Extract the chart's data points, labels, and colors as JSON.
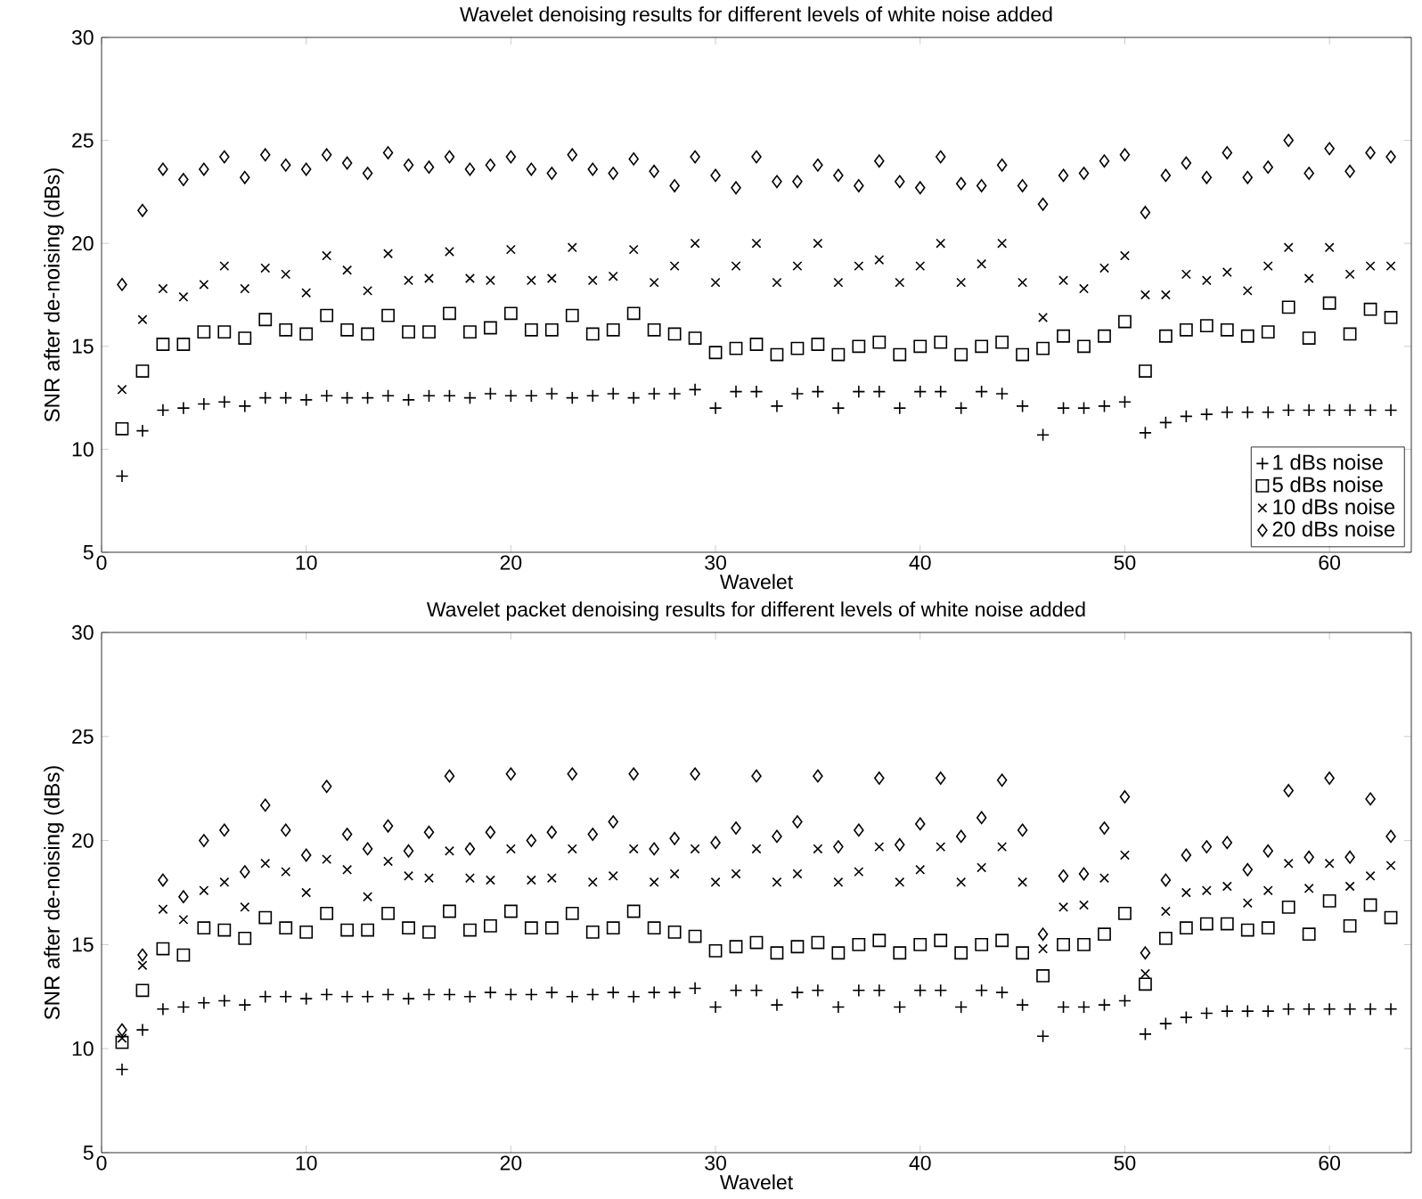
{
  "chart_data": [
    {
      "type": "scatter",
      "title": "Wavelet denoising results for different levels of white noise added",
      "xlabel": "Wavelet",
      "ylabel": "SNR after de-noising (dBs)",
      "x": [
        1,
        2,
        3,
        4,
        5,
        6,
        7,
        8,
        9,
        10,
        11,
        12,
        13,
        14,
        15,
        16,
        17,
        18,
        19,
        20,
        21,
        22,
        23,
        24,
        25,
        26,
        27,
        28,
        29,
        30,
        31,
        32,
        33,
        34,
        35,
        36,
        37,
        38,
        39,
        40,
        41,
        42,
        43,
        44,
        45,
        46,
        47,
        48,
        49,
        50,
        51,
        52,
        53,
        54,
        55,
        56,
        57,
        58,
        59,
        60,
        61,
        62,
        63
      ],
      "xlim": [
        0,
        64
      ],
      "ylim": [
        5,
        30
      ],
      "xticks": [
        0,
        10,
        20,
        30,
        40,
        50,
        60
      ],
      "yticks": [
        5,
        10,
        15,
        20,
        25,
        30
      ],
      "legend": "bottom right",
      "series": [
        {
          "name": "1 dBs noise",
          "color": "#000000",
          "marker": "plus",
          "values": [
            8.7,
            10.9,
            11.9,
            12.0,
            12.2,
            12.3,
            12.1,
            12.5,
            12.5,
            12.4,
            12.6,
            12.5,
            12.5,
            12.6,
            12.4,
            12.6,
            12.6,
            12.5,
            12.7,
            12.6,
            12.6,
            12.7,
            12.5,
            12.6,
            12.7,
            12.5,
            12.7,
            12.7,
            12.9,
            12.0,
            12.8,
            12.8,
            12.1,
            12.7,
            12.8,
            12.0,
            12.8,
            12.8,
            12.0,
            12.8,
            12.8,
            12.0,
            12.8,
            12.7,
            12.1,
            10.7,
            12.0,
            12.0,
            12.1,
            12.3,
            10.8,
            11.3,
            11.6,
            11.7,
            11.8,
            11.8,
            11.8,
            11.9,
            11.9,
            11.9,
            11.9,
            11.9,
            11.9
          ]
        },
        {
          "name": "5 dBs noise",
          "color": "#000000",
          "marker": "square",
          "values": [
            11.0,
            13.8,
            15.1,
            15.1,
            15.7,
            15.7,
            15.4,
            16.3,
            15.8,
            15.6,
            16.5,
            15.8,
            15.6,
            16.5,
            15.7,
            15.7,
            16.6,
            15.7,
            15.9,
            16.6,
            15.8,
            15.8,
            16.5,
            15.6,
            15.8,
            16.6,
            15.8,
            15.6,
            15.4,
            14.7,
            14.9,
            15.1,
            14.6,
            14.9,
            15.1,
            14.6,
            15.0,
            15.2,
            14.6,
            15.0,
            15.2,
            14.6,
            15.0,
            15.2,
            14.6,
            14.9,
            15.5,
            15.0,
            15.5,
            16.2,
            13.8,
            15.5,
            15.8,
            16.0,
            15.8,
            15.5,
            15.7,
            16.9,
            15.4,
            17.1,
            15.6,
            16.8,
            16.4
          ]
        },
        {
          "name": "10 dBs noise",
          "color": "#000000",
          "marker": "cross",
          "values": [
            12.9,
            16.3,
            17.8,
            17.4,
            18.0,
            18.9,
            17.8,
            18.8,
            18.5,
            17.6,
            19.4,
            18.7,
            17.7,
            19.5,
            18.2,
            18.3,
            19.6,
            18.3,
            18.2,
            19.7,
            18.2,
            18.3,
            19.8,
            18.2,
            18.4,
            19.7,
            18.1,
            18.9,
            20.0,
            18.1,
            18.9,
            20.0,
            18.1,
            18.9,
            20.0,
            18.1,
            18.9,
            19.2,
            18.1,
            18.9,
            20.0,
            18.1,
            19.0,
            20.0,
            18.1,
            16.4,
            18.2,
            17.8,
            18.8,
            19.4,
            17.5,
            17.5,
            18.5,
            18.2,
            18.6,
            17.7,
            18.9,
            19.8,
            18.3,
            19.8,
            18.5,
            18.9,
            18.9
          ]
        },
        {
          "name": "20 dBs noise",
          "color": "#000000",
          "marker": "diamond",
          "values": [
            18.0,
            21.6,
            23.6,
            23.1,
            23.6,
            24.2,
            23.2,
            24.3,
            23.8,
            23.6,
            24.3,
            23.9,
            23.4,
            24.4,
            23.8,
            23.7,
            24.2,
            23.6,
            23.8,
            24.2,
            23.6,
            23.4,
            24.3,
            23.6,
            23.4,
            24.1,
            23.5,
            22.8,
            24.2,
            23.3,
            22.7,
            24.2,
            23.0,
            23.0,
            23.8,
            23.3,
            22.8,
            24.0,
            23.0,
            22.7,
            24.2,
            22.9,
            22.8,
            23.8,
            22.8,
            21.9,
            23.3,
            23.4,
            24.0,
            24.3,
            21.5,
            23.3,
            23.9,
            23.2,
            24.4,
            23.2,
            23.7,
            25.0,
            23.4,
            24.6,
            23.5,
            24.4,
            24.2
          ]
        }
      ]
    },
    {
      "type": "scatter",
      "title": "Wavelet packet denoising results for different levels of white noise added",
      "xlabel": "Wavelet",
      "ylabel": "SNR after de-noising (dBs)",
      "x": [
        1,
        2,
        3,
        4,
        5,
        6,
        7,
        8,
        9,
        10,
        11,
        12,
        13,
        14,
        15,
        16,
        17,
        18,
        19,
        20,
        21,
        22,
        23,
        24,
        25,
        26,
        27,
        28,
        29,
        30,
        31,
        32,
        33,
        34,
        35,
        36,
        37,
        38,
        39,
        40,
        41,
        42,
        43,
        44,
        45,
        46,
        47,
        48,
        49,
        50,
        51,
        52,
        53,
        54,
        55,
        56,
        57,
        58,
        59,
        60,
        61,
        62,
        63
      ],
      "xlim": [
        0,
        64
      ],
      "ylim": [
        5,
        30
      ],
      "xticks": [
        0,
        10,
        20,
        30,
        40,
        50,
        60
      ],
      "yticks": [
        5,
        10,
        15,
        20,
        25,
        30
      ],
      "legend": false,
      "series": [
        {
          "color": "#000000",
          "marker": "plus",
          "values": [
            9.0,
            10.9,
            11.9,
            12.0,
            12.2,
            12.3,
            12.1,
            12.5,
            12.5,
            12.4,
            12.6,
            12.5,
            12.5,
            12.6,
            12.4,
            12.6,
            12.6,
            12.5,
            12.7,
            12.6,
            12.6,
            12.7,
            12.5,
            12.6,
            12.7,
            12.5,
            12.7,
            12.7,
            12.9,
            12.0,
            12.8,
            12.8,
            12.1,
            12.7,
            12.8,
            12.0,
            12.8,
            12.8,
            12.0,
            12.8,
            12.8,
            12.0,
            12.8,
            12.7,
            12.1,
            10.6,
            12.0,
            12.0,
            12.1,
            12.3,
            10.7,
            11.2,
            11.5,
            11.7,
            11.8,
            11.8,
            11.8,
            11.9,
            11.9,
            11.9,
            11.9,
            11.9,
            11.9
          ]
        },
        {
          "color": "#000000",
          "marker": "square",
          "values": [
            10.3,
            12.8,
            14.8,
            14.5,
            15.8,
            15.7,
            15.3,
            16.3,
            15.8,
            15.6,
            16.5,
            15.7,
            15.7,
            16.5,
            15.8,
            15.6,
            16.6,
            15.7,
            15.9,
            16.6,
            15.8,
            15.8,
            16.5,
            15.6,
            15.8,
            16.6,
            15.8,
            15.6,
            15.4,
            14.7,
            14.9,
            15.1,
            14.6,
            14.9,
            15.1,
            14.6,
            15.0,
            15.2,
            14.6,
            15.0,
            15.2,
            14.6,
            15.0,
            15.2,
            14.6,
            13.5,
            15.0,
            15.0,
            15.5,
            16.5,
            13.1,
            15.3,
            15.8,
            16.0,
            16.0,
            15.7,
            15.8,
            16.8,
            15.5,
            17.1,
            15.9,
            16.9,
            16.3
          ]
        },
        {
          "color": "#000000",
          "marker": "cross",
          "values": [
            10.5,
            14.0,
            16.7,
            16.2,
            17.6,
            18.0,
            16.8,
            18.9,
            18.5,
            17.5,
            19.1,
            18.6,
            17.3,
            19.0,
            18.3,
            18.2,
            19.5,
            18.2,
            18.1,
            19.6,
            18.1,
            18.2,
            19.6,
            18.0,
            18.3,
            19.6,
            18.0,
            18.4,
            19.6,
            18.0,
            18.4,
            19.6,
            18.0,
            18.4,
            19.6,
            18.0,
            18.5,
            19.7,
            18.0,
            18.6,
            19.7,
            18.0,
            18.7,
            19.7,
            18.0,
            14.8,
            16.8,
            16.9,
            18.2,
            19.3,
            13.6,
            16.6,
            17.5,
            17.6,
            17.8,
            17.0,
            17.6,
            18.9,
            17.7,
            18.9,
            17.8,
            18.3,
            18.8
          ]
        },
        {
          "color": "#000000",
          "marker": "diamond",
          "values": [
            10.9,
            14.5,
            18.1,
            17.3,
            20.0,
            20.5,
            18.5,
            21.7,
            20.5,
            19.3,
            22.6,
            20.3,
            19.6,
            20.7,
            19.5,
            20.4,
            23.1,
            19.6,
            20.4,
            23.2,
            20.0,
            20.4,
            23.2,
            20.3,
            20.9,
            23.2,
            19.6,
            20.1,
            23.2,
            19.9,
            20.6,
            23.1,
            20.2,
            20.9,
            23.1,
            19.7,
            20.5,
            23.0,
            19.8,
            20.8,
            23.0,
            20.2,
            21.1,
            22.9,
            20.5,
            15.5,
            18.3,
            18.4,
            20.6,
            22.1,
            14.6,
            18.1,
            19.3,
            19.7,
            19.9,
            18.6,
            19.5,
            22.4,
            19.2,
            23.0,
            19.2,
            22.0,
            20.2
          ]
        }
      ]
    }
  ]
}
